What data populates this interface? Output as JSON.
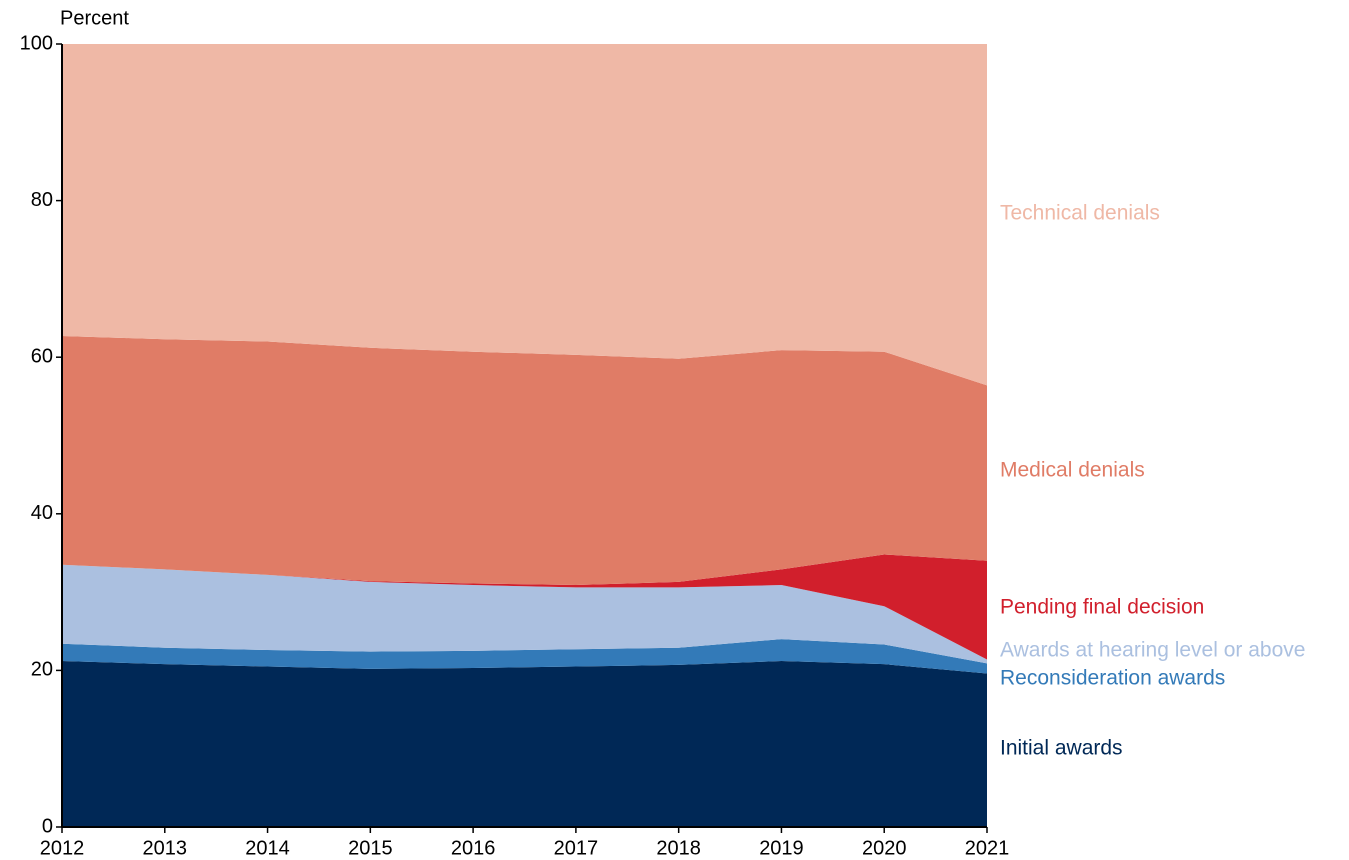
{
  "chart_data": {
    "type": "stacked_area",
    "y_axis_label": "Percent",
    "x": [
      2012,
      2013,
      2014,
      2015,
      2016,
      2017,
      2018,
      2019,
      2020,
      2021
    ],
    "xlim": [
      2012,
      2021
    ],
    "xticks": [
      2012,
      2013,
      2014,
      2015,
      2016,
      2017,
      2018,
      2019,
      2020,
      2021
    ],
    "ylim": [
      0,
      100
    ],
    "yticks": [
      0,
      20,
      40,
      60,
      80,
      100
    ],
    "series": [
      {
        "name": "Initial awards",
        "color": "#002856",
        "values": [
          21.2,
          20.8,
          20.5,
          20.2,
          20.3,
          20.5,
          20.7,
          21.2,
          20.8,
          19.6
        ]
      },
      {
        "name": "Reconsideration awards",
        "color": "#337ab8",
        "values": [
          2.2,
          2.1,
          2.1,
          2.2,
          2.2,
          2.2,
          2.2,
          2.8,
          2.5,
          1.3
        ]
      },
      {
        "name": "Awards at hearing level or above",
        "color": "#abc0e0",
        "values": [
          10.1,
          10.0,
          9.6,
          8.9,
          8.4,
          7.9,
          7.7,
          6.9,
          4.9,
          0.5
        ]
      },
      {
        "name": "Pending final decision",
        "color": "#d11f2c",
        "values": [
          0,
          0,
          0,
          0.1,
          0.2,
          0.3,
          0.7,
          2.0,
          6.6,
          12.6
        ]
      },
      {
        "name": "Medical denials",
        "color": "#e07c66",
        "values": [
          29.2,
          29.4,
          29.8,
          29.8,
          29.6,
          29.4,
          28.5,
          28.0,
          25.9,
          22.4
        ]
      },
      {
        "name": "Technical denials",
        "color": "#efb8a6",
        "values": [
          37.3,
          37.7,
          38.0,
          38.8,
          39.3,
          39.7,
          40.2,
          39.1,
          39.3,
          43.6
        ]
      }
    ]
  }
}
